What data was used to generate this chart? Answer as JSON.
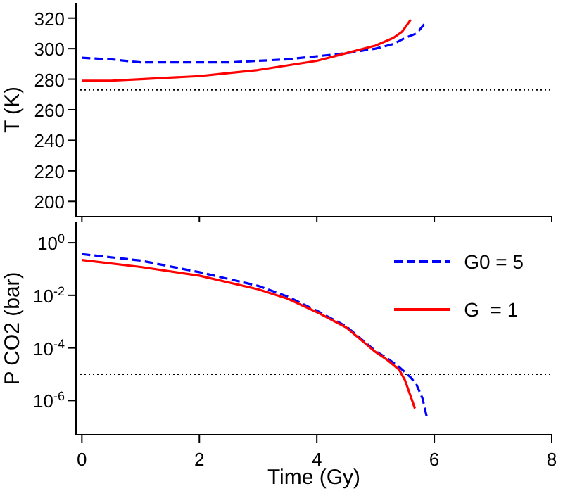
{
  "chart_data": [
    {
      "type": "line",
      "ylabel": "T (K)",
      "xlim": [
        -0.1,
        8
      ],
      "xticks": [
        0,
        2,
        4,
        6,
        8
      ],
      "ylim": [
        190,
        330
      ],
      "yticks": [
        200,
        220,
        240,
        260,
        280,
        300,
        320
      ],
      "tick_labels": "y",
      "legend": false,
      "ref_lines": [
        {
          "axis": "y",
          "value": 273,
          "color": "#000000",
          "line_style": "dotted"
        }
      ],
      "series": [
        {
          "color": "#0000ff",
          "line_style": "dashed",
          "x": [
            0,
            0.5,
            1,
            1.5,
            2,
            2.5,
            3,
            3.5,
            4,
            4.5,
            5,
            5.3,
            5.5,
            5.7,
            5.85
          ],
          "values": [
            294,
            293,
            291,
            291,
            291,
            291,
            292,
            293,
            295,
            297,
            300,
            303,
            307,
            310,
            317
          ]
        },
        {
          "color": "#ff0000",
          "line_style": "solid",
          "x": [
            0,
            0.5,
            1,
            1.5,
            2,
            2.5,
            3,
            3.5,
            4,
            4.5,
            5,
            5.3,
            5.45,
            5.6
          ],
          "values": [
            279,
            279,
            280,
            281,
            282,
            284,
            286,
            289,
            292,
            297,
            302,
            307,
            311,
            319
          ]
        }
      ]
    },
    {
      "type": "line",
      "xlabel": "Time (Gy)",
      "ylabel": "P CO2 (bar)",
      "log": true,
      "xlim": [
        -0.1,
        8
      ],
      "xticks": [
        0,
        2,
        4,
        6,
        8
      ],
      "ylim": [
        5e-08,
        6
      ],
      "yticks": [
        {
          "value": 1,
          "label": "10$^{0}$"
        },
        {
          "value": 0.01,
          "label": "10$^{-2}$"
        },
        {
          "value": 0.0001,
          "label": "10$^{-4}$"
        },
        {
          "value": 1e-06,
          "label": "10$^{-6}$"
        }
      ],
      "legend": "top right",
      "ref_lines": [
        {
          "axis": "y",
          "value": 1e-05,
          "color": "#000000",
          "line_style": "dotted"
        }
      ],
      "series": [
        {
          "name": "G0 = 5",
          "color": "#0000ff",
          "line_style": "dashed",
          "x": [
            0,
            1,
            2,
            3,
            3.5,
            4,
            4.5,
            5,
            5.2,
            5.4,
            5.6,
            5.7,
            5.8,
            5.88
          ],
          "values": [
            0.37,
            0.21,
            0.076,
            0.023,
            0.009,
            0.0026,
            0.00066,
            7.6e-05,
            4e-05,
            1.9e-05,
            7.5e-06,
            3.9e-06,
            1.2e-06,
            2e-07
          ]
        },
        {
          "name": "G  = 1",
          "color": "#ff0000",
          "line_style": "solid",
          "x": [
            0,
            1,
            2,
            3,
            3.5,
            4,
            4.5,
            5,
            5.2,
            5.4,
            5.5,
            5.6,
            5.67
          ],
          "values": [
            0.22,
            0.12,
            0.056,
            0.017,
            0.0075,
            0.0023,
            0.0006,
            7e-05,
            3.5e-05,
            1.5e-05,
            6e-06,
            1.4e-06,
            5e-07
          ]
        }
      ]
    }
  ]
}
